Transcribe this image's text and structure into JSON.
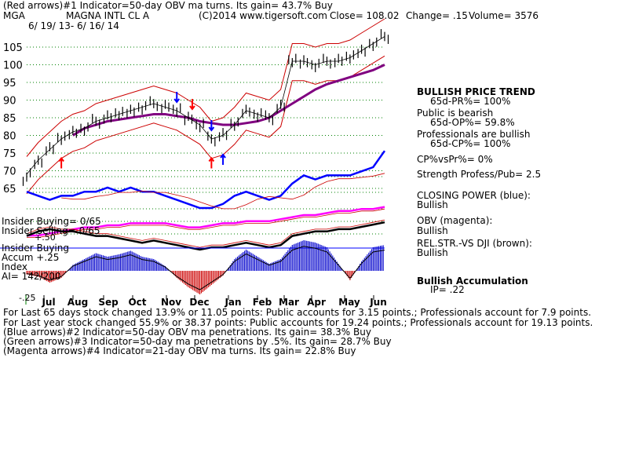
{
  "header": {
    "line1": "(Red arrows)#1 Indicator=50-day OBV ma turns. Its gain= 43.7% Buy",
    "ticker": "MGA",
    "company": "MAGNA INTL CL A",
    "copyright": "(C)2014 www.tigersoft.com",
    "close": "Close=  108.02",
    "change": "Change= .15",
    "volume": "Volume=  3576",
    "daterange": "6/ 19/ 13- 6/ 16/ 14"
  },
  "right_panel": {
    "trend_title": "BULLISH PRICE TREND",
    "trend_pr": "65d-PR%= 100%",
    "public_title": "Public is bearish",
    "public_op": "65d-OP%= 59.8%",
    "pros_title": "Professionals are bullish",
    "pros_cp": "65d-CP%= 100%",
    "cpvs": "CP%vsPr%=  0%",
    "strength": "Strength Profess/Pub= 2.5",
    "cp_title": "CLOSING POWER (blue):",
    "cp_value": "Bullish",
    "obv_title": "OBV (magenta):",
    "obv_value": "Bullish",
    "rel_title": "REL.STR.-VS DJI (brown):",
    "rel_value": "Bullish",
    "accum_title": "Bullish Accumulation",
    "accum_ip": "IP=  .22"
  },
  "left_labels": {
    "insider_buying": "Insider Buying= 0/65",
    "insider_selling": "Insider Selling= 0/65",
    "plus50": "+.50",
    "insider_buying2": "Insider Buying",
    "accum": "Accum  +.25",
    "index": "Index",
    "ai": "AI= 142/200",
    "minus25": "-.25"
  },
  "footer": {
    "line1": "For Last 65 days stock changed  13.9% or  11.05 points:  Public accounts for  3.15 points.;  Professionals account for  7.9 points.",
    "line2": "For Last year stock changed  55.9% or  38.37 points:  Public accounts for  19.24 points.;  Professionals account for  19.13 points.",
    "line3": "(Blue arrows)#2 Indicator=50-day OBV ma penetrations. Its gain= 38.3% Buy",
    "line4": "(Green arrows)#3 Indicator=50-day ma penetrations by .5%. Its gain= 28.7% Buy",
    "line5": "(Magenta arrows)#4 Indicator=21-day OBV ma turns. Its gain= 22.8% Buy"
  },
  "colors": {
    "price": "#000000",
    "band": "#cc0000",
    "ma50": "#800080",
    "closing_power": "#0000ff",
    "obv": "#ff00ff",
    "rel_strength": "#000000",
    "accum_pos": "#0000cc",
    "accum_neg": "#cc0000",
    "grid": "#008000"
  },
  "chart_data": {
    "type": "line",
    "title": "MAGNA INTL CL A",
    "y_ticks": [
      65,
      70,
      75,
      80,
      85,
      90,
      95,
      100,
      105
    ],
    "ylim": [
      62,
      111
    ],
    "months": [
      "Jul",
      "Aug",
      "Sep",
      "Oct",
      "Nov",
      "Dec",
      "Jan",
      "Feb",
      "Mar",
      "Apr",
      "May",
      "Jun"
    ],
    "series": [
      {
        "id": "price",
        "values": [
          69,
          73,
          76,
          79,
          81,
          82,
          84,
          85,
          86,
          87,
          88,
          89,
          88,
          87,
          85,
          83,
          79,
          80,
          83,
          87,
          86,
          85,
          88,
          101,
          101,
          100,
          101,
          101,
          102,
          104,
          106,
          108
        ]
      },
      {
        "id": "ma50",
        "values": [
          null,
          null,
          null,
          null,
          80,
          82,
          83,
          84,
          84.5,
          85,
          85.5,
          86,
          86,
          85.5,
          85,
          84,
          83.5,
          83,
          83,
          83.5,
          84,
          85,
          87,
          89,
          91,
          93,
          94.5,
          95.5,
          96.5,
          97.5,
          98.5,
          100
        ]
      }
    ],
    "indicators": {
      "closing_power": [
        64,
        63,
        62,
        63,
        63,
        64,
        64,
        65,
        64,
        65,
        64,
        64,
        63,
        62,
        61,
        60,
        60,
        61,
        63,
        64,
        63,
        62,
        63,
        66,
        68,
        67,
        68,
        68,
        68,
        69,
        70,
        74
      ],
      "obv": [
        58,
        58,
        58.5,
        59,
        59.5,
        60,
        60,
        60.5,
        60.5,
        61,
        61,
        61,
        61,
        60.5,
        60,
        60,
        60.5,
        61,
        61,
        61.5,
        61.5,
        61.5,
        62,
        62.5,
        63,
        63,
        63.5,
        64,
        64,
        64.5,
        64.5,
        65
      ],
      "rel_strength": [
        60,
        62,
        63,
        62,
        62,
        61,
        60,
        60,
        59,
        58,
        57,
        58,
        57,
        56,
        55,
        54,
        55,
        55,
        56,
        57,
        56,
        55,
        56,
        60,
        61,
        62,
        62,
        63,
        63,
        64,
        65,
        66
      ],
      "accumulation": [
        -0.03,
        -0.05,
        -0.1,
        -0.06,
        0.05,
        0.1,
        0.15,
        0.12,
        0.14,
        0.17,
        0.12,
        0.1,
        0.04,
        -0.06,
        -0.14,
        -0.2,
        -0.12,
        -0.04,
        0.1,
        0.18,
        0.12,
        0.06,
        0.1,
        0.22,
        0.26,
        0.24,
        0.2,
        0.06,
        -0.08,
        0.08,
        0.2,
        0.22
      ]
    },
    "arrows": [
      {
        "color": "red",
        "index": 3,
        "dir": "up"
      },
      {
        "color": "blue",
        "index": 13,
        "dir": "down"
      },
      {
        "color": "red",
        "index": 14,
        "dir": "down"
      },
      {
        "color": "blue",
        "index": 16,
        "dir": "down"
      },
      {
        "color": "red",
        "index": 16,
        "dir": "up"
      },
      {
        "color": "blue",
        "index": 17,
        "dir": "up"
      }
    ]
  }
}
